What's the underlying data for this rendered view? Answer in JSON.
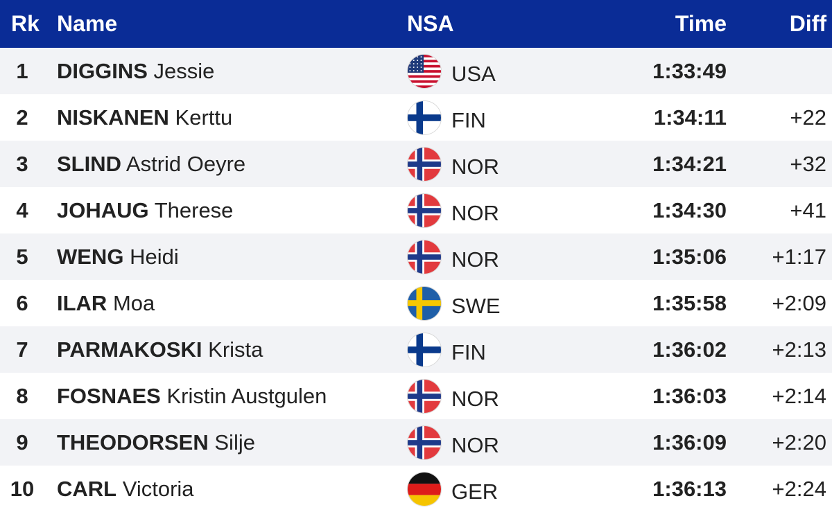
{
  "header": {
    "rk": "Rk",
    "name": "Name",
    "nsa": "NSA",
    "time": "Time",
    "diff": "Diff"
  },
  "colors": {
    "header_bg": "#0a2c96",
    "header_text": "#ffffff",
    "row_alt": "#f2f3f6",
    "text": "#222222"
  },
  "rows": [
    {
      "rank": "1",
      "surname": "DIGGINS",
      "given": "Jessie",
      "nsa": "USA",
      "flag": "usa-flag-icon",
      "time": "1:33:49",
      "diff": ""
    },
    {
      "rank": "2",
      "surname": "NISKANEN",
      "given": "Kerttu",
      "nsa": "FIN",
      "flag": "finland-flag-icon",
      "time": "1:34:11",
      "diff": "+22"
    },
    {
      "rank": "3",
      "surname": "SLIND",
      "given": "Astrid Oeyre",
      "nsa": "NOR",
      "flag": "norway-flag-icon",
      "time": "1:34:21",
      "diff": "+32"
    },
    {
      "rank": "4",
      "surname": "JOHAUG",
      "given": "Therese",
      "nsa": "NOR",
      "flag": "norway-flag-icon",
      "time": "1:34:30",
      "diff": "+41"
    },
    {
      "rank": "5",
      "surname": "WENG",
      "given": "Heidi",
      "nsa": "NOR",
      "flag": "norway-flag-icon",
      "time": "1:35:06",
      "diff": "+1:17"
    },
    {
      "rank": "6",
      "surname": "ILAR",
      "given": "Moa",
      "nsa": "SWE",
      "flag": "sweden-flag-icon",
      "time": "1:35:58",
      "diff": "+2:09"
    },
    {
      "rank": "7",
      "surname": "PARMAKOSKI",
      "given": "Krista",
      "nsa": "FIN",
      "flag": "finland-flag-icon",
      "time": "1:36:02",
      "diff": "+2:13"
    },
    {
      "rank": "8",
      "surname": "FOSNAES",
      "given": "Kristin Austgulen",
      "nsa": "NOR",
      "flag": "norway-flag-icon",
      "time": "1:36:03",
      "diff": "+2:14"
    },
    {
      "rank": "9",
      "surname": "THEODORSEN",
      "given": "Silje",
      "nsa": "NOR",
      "flag": "norway-flag-icon",
      "time": "1:36:09",
      "diff": "+2:20"
    },
    {
      "rank": "10",
      "surname": "CARL",
      "given": "Victoria",
      "nsa": "GER",
      "flag": "germany-flag-icon",
      "time": "1:36:13",
      "diff": "+2:24"
    }
  ]
}
